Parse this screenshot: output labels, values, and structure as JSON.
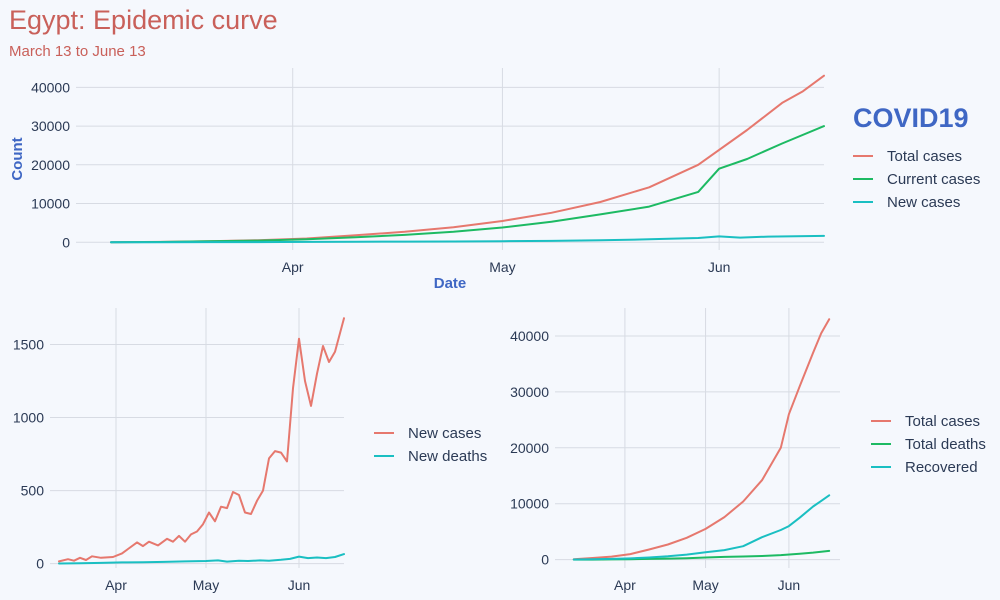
{
  "title": "Egypt: Epidemic curve",
  "subtitle": "March 13 to June 13",
  "colors": {
    "red": "#e6786e",
    "green": "#1dba63",
    "teal": "#1abfc2"
  },
  "chart_data": [
    {
      "type": "line",
      "xlabel": "Date",
      "ylabel": "Count",
      "legend_title": "COVID19",
      "legend_position": "right",
      "grid": true,
      "x_range": [
        "2020-03-01",
        "2020-06-16"
      ],
      "ylim": [
        -2000,
        45000
      ],
      "xticks": [
        {
          "date": "2020-04-01",
          "label": "Apr"
        },
        {
          "date": "2020-05-01",
          "label": "May"
        },
        {
          "date": "2020-06-01",
          "label": "Jun"
        }
      ],
      "yticks": [
        0,
        10000,
        20000,
        30000,
        40000
      ],
      "series": [
        {
          "name": "Total cases",
          "color": "#e6786e",
          "points": [
            [
              "2020-03-06",
              15
            ],
            [
              "2020-03-13",
              80
            ],
            [
              "2020-03-20",
              280
            ],
            [
              "2020-03-27",
              540
            ],
            [
              "2020-04-03",
              980
            ],
            [
              "2020-04-10",
              1800
            ],
            [
              "2020-04-17",
              2700
            ],
            [
              "2020-04-24",
              3900
            ],
            [
              "2020-05-01",
              5500
            ],
            [
              "2020-05-08",
              7600
            ],
            [
              "2020-05-15",
              10400
            ],
            [
              "2020-05-22",
              14200
            ],
            [
              "2020-05-29",
              20000
            ],
            [
              "2020-06-05",
              29000
            ],
            [
              "2020-06-10",
              36000
            ],
            [
              "2020-06-13",
              39000
            ],
            [
              "2020-06-16",
              43000
            ]
          ]
        },
        {
          "name": "Current cases",
          "color": "#1dba63",
          "points": [
            [
              "2020-03-06",
              15
            ],
            [
              "2020-03-13",
              70
            ],
            [
              "2020-03-20",
              240
            ],
            [
              "2020-03-27",
              420
            ],
            [
              "2020-04-03",
              780
            ],
            [
              "2020-04-10",
              1300
            ],
            [
              "2020-04-17",
              1900
            ],
            [
              "2020-04-24",
              2700
            ],
            [
              "2020-05-01",
              3800
            ],
            [
              "2020-05-08",
              5300
            ],
            [
              "2020-05-15",
              7200
            ],
            [
              "2020-05-22",
              9200
            ],
            [
              "2020-05-29",
              13000
            ],
            [
              "2020-06-01",
              19000
            ],
            [
              "2020-06-05",
              21500
            ],
            [
              "2020-06-10",
              25500
            ],
            [
              "2020-06-16",
              30000
            ]
          ]
        },
        {
          "name": "New cases",
          "color": "#1abfc2",
          "points": [
            [
              "2020-03-06",
              5
            ],
            [
              "2020-03-13",
              10
            ],
            [
              "2020-03-20",
              30
            ],
            [
              "2020-03-27",
              50
            ],
            [
              "2020-04-03",
              90
            ],
            [
              "2020-04-10",
              140
            ],
            [
              "2020-04-17",
              170
            ],
            [
              "2020-04-24",
              200
            ],
            [
              "2020-05-01",
              270
            ],
            [
              "2020-05-08",
              340
            ],
            [
              "2020-05-15",
              500
            ],
            [
              "2020-05-22",
              760
            ],
            [
              "2020-05-29",
              1100
            ],
            [
              "2020-06-01",
              1500
            ],
            [
              "2020-06-04",
              1200
            ],
            [
              "2020-06-08",
              1450
            ],
            [
              "2020-06-16",
              1650
            ]
          ]
        }
      ]
    },
    {
      "type": "line",
      "legend_position": "right",
      "grid": true,
      "x_range": [
        "2020-03-10",
        "2020-06-16"
      ],
      "ylim": [
        -30,
        1750
      ],
      "xticks": [
        {
          "date": "2020-04-01",
          "label": "Apr"
        },
        {
          "date": "2020-05-01",
          "label": "May"
        },
        {
          "date": "2020-06-01",
          "label": "Jun"
        }
      ],
      "yticks": [
        0,
        500,
        1000,
        1500
      ],
      "series": [
        {
          "name": "New cases",
          "color": "#e6786e",
          "points": [
            [
              "2020-03-13",
              15
            ],
            [
              "2020-03-16",
              30
            ],
            [
              "2020-03-18",
              20
            ],
            [
              "2020-03-20",
              40
            ],
            [
              "2020-03-22",
              25
            ],
            [
              "2020-03-24",
              50
            ],
            [
              "2020-03-27",
              40
            ],
            [
              "2020-03-31",
              45
            ],
            [
              "2020-04-03",
              70
            ],
            [
              "2020-04-05",
              100
            ],
            [
              "2020-04-08",
              145
            ],
            [
              "2020-04-10",
              120
            ],
            [
              "2020-04-12",
              150
            ],
            [
              "2020-04-15",
              125
            ],
            [
              "2020-04-18",
              170
            ],
            [
              "2020-04-20",
              150
            ],
            [
              "2020-04-22",
              190
            ],
            [
              "2020-04-24",
              150
            ],
            [
              "2020-04-26",
              200
            ],
            [
              "2020-04-28",
              220
            ],
            [
              "2020-04-30",
              270
            ],
            [
              "2020-05-02",
              350
            ],
            [
              "2020-05-04",
              290
            ],
            [
              "2020-05-06",
              390
            ],
            [
              "2020-05-08",
              380
            ],
            [
              "2020-05-10",
              490
            ],
            [
              "2020-05-12",
              470
            ],
            [
              "2020-05-14",
              350
            ],
            [
              "2020-05-16",
              340
            ],
            [
              "2020-05-18",
              430
            ],
            [
              "2020-05-20",
              500
            ],
            [
              "2020-05-22",
              720
            ],
            [
              "2020-05-24",
              770
            ],
            [
              "2020-05-26",
              760
            ],
            [
              "2020-05-28",
              700
            ],
            [
              "2020-05-30",
              1200
            ],
            [
              "2020-06-01",
              1540
            ],
            [
              "2020-06-03",
              1250
            ],
            [
              "2020-06-05",
              1080
            ],
            [
              "2020-06-07",
              1300
            ],
            [
              "2020-06-09",
              1490
            ],
            [
              "2020-06-11",
              1380
            ],
            [
              "2020-06-13",
              1450
            ],
            [
              "2020-06-16",
              1680
            ]
          ]
        },
        {
          "name": "New deaths",
          "color": "#1abfc2",
          "points": [
            [
              "2020-03-13",
              1
            ],
            [
              "2020-03-20",
              2
            ],
            [
              "2020-03-27",
              5
            ],
            [
              "2020-04-03",
              8
            ],
            [
              "2020-04-10",
              10
            ],
            [
              "2020-04-17",
              12
            ],
            [
              "2020-04-24",
              15
            ],
            [
              "2020-05-01",
              18
            ],
            [
              "2020-05-05",
              22
            ],
            [
              "2020-05-08",
              14
            ],
            [
              "2020-05-12",
              20
            ],
            [
              "2020-05-15",
              18
            ],
            [
              "2020-05-19",
              22
            ],
            [
              "2020-05-22",
              20
            ],
            [
              "2020-05-26",
              26
            ],
            [
              "2020-05-29",
              32
            ],
            [
              "2020-06-01",
              48
            ],
            [
              "2020-06-04",
              38
            ],
            [
              "2020-06-07",
              42
            ],
            [
              "2020-06-10",
              38
            ],
            [
              "2020-06-13",
              45
            ],
            [
              "2020-06-16",
              65
            ]
          ]
        }
      ]
    },
    {
      "type": "line",
      "legend_position": "right",
      "grid": true,
      "x_range": [
        "2020-03-06",
        "2020-06-20"
      ],
      "ylim": [
        -1500,
        45000
      ],
      "xticks": [
        {
          "date": "2020-04-01",
          "label": "Apr"
        },
        {
          "date": "2020-05-01",
          "label": "May"
        },
        {
          "date": "2020-06-01",
          "label": "Jun"
        }
      ],
      "yticks": [
        0,
        10000,
        20000,
        30000,
        40000
      ],
      "series": [
        {
          "name": "Total cases",
          "color": "#e6786e",
          "points": [
            [
              "2020-03-13",
              80
            ],
            [
              "2020-03-20",
              280
            ],
            [
              "2020-03-27",
              540
            ],
            [
              "2020-04-03",
              980
            ],
            [
              "2020-04-10",
              1800
            ],
            [
              "2020-04-17",
              2700
            ],
            [
              "2020-04-24",
              3900
            ],
            [
              "2020-05-01",
              5500
            ],
            [
              "2020-05-08",
              7600
            ],
            [
              "2020-05-15",
              10400
            ],
            [
              "2020-05-22",
              14200
            ],
            [
              "2020-05-29",
              20000
            ],
            [
              "2020-06-01",
              26000
            ],
            [
              "2020-06-05",
              31000
            ],
            [
              "2020-06-10",
              37000
            ],
            [
              "2020-06-13",
              40500
            ],
            [
              "2020-06-16",
              43000
            ]
          ]
        },
        {
          "name": "Total deaths",
          "color": "#1dba63",
          "points": [
            [
              "2020-03-13",
              2
            ],
            [
              "2020-03-20",
              10
            ],
            [
              "2020-03-27",
              30
            ],
            [
              "2020-04-03",
              70
            ],
            [
              "2020-04-10",
              120
            ],
            [
              "2020-04-17",
              180
            ],
            [
              "2020-04-24",
              260
            ],
            [
              "2020-05-01",
              380
            ],
            [
              "2020-05-08",
              480
            ],
            [
              "2020-05-15",
              560
            ],
            [
              "2020-05-22",
              650
            ],
            [
              "2020-05-29",
              800
            ],
            [
              "2020-06-05",
              1050
            ],
            [
              "2020-06-10",
              1250
            ],
            [
              "2020-06-13",
              1420
            ],
            [
              "2020-06-16",
              1550
            ]
          ]
        },
        {
          "name": "Recovered",
          "color": "#1abfc2",
          "points": [
            [
              "2020-03-13",
              20
            ],
            [
              "2020-03-20",
              60
            ],
            [
              "2020-03-27",
              120
            ],
            [
              "2020-04-03",
              220
            ],
            [
              "2020-04-10",
              380
            ],
            [
              "2020-04-17",
              600
            ],
            [
              "2020-04-24",
              900
            ],
            [
              "2020-05-01",
              1300
            ],
            [
              "2020-05-08",
              1700
            ],
            [
              "2020-05-15",
              2400
            ],
            [
              "2020-05-22",
              4000
            ],
            [
              "2020-05-29",
              5300
            ],
            [
              "2020-06-01",
              6000
            ],
            [
              "2020-06-05",
              7500
            ],
            [
              "2020-06-10",
              9500
            ],
            [
              "2020-06-13",
              10500
            ],
            [
              "2020-06-16",
              11500
            ]
          ]
        }
      ]
    }
  ]
}
